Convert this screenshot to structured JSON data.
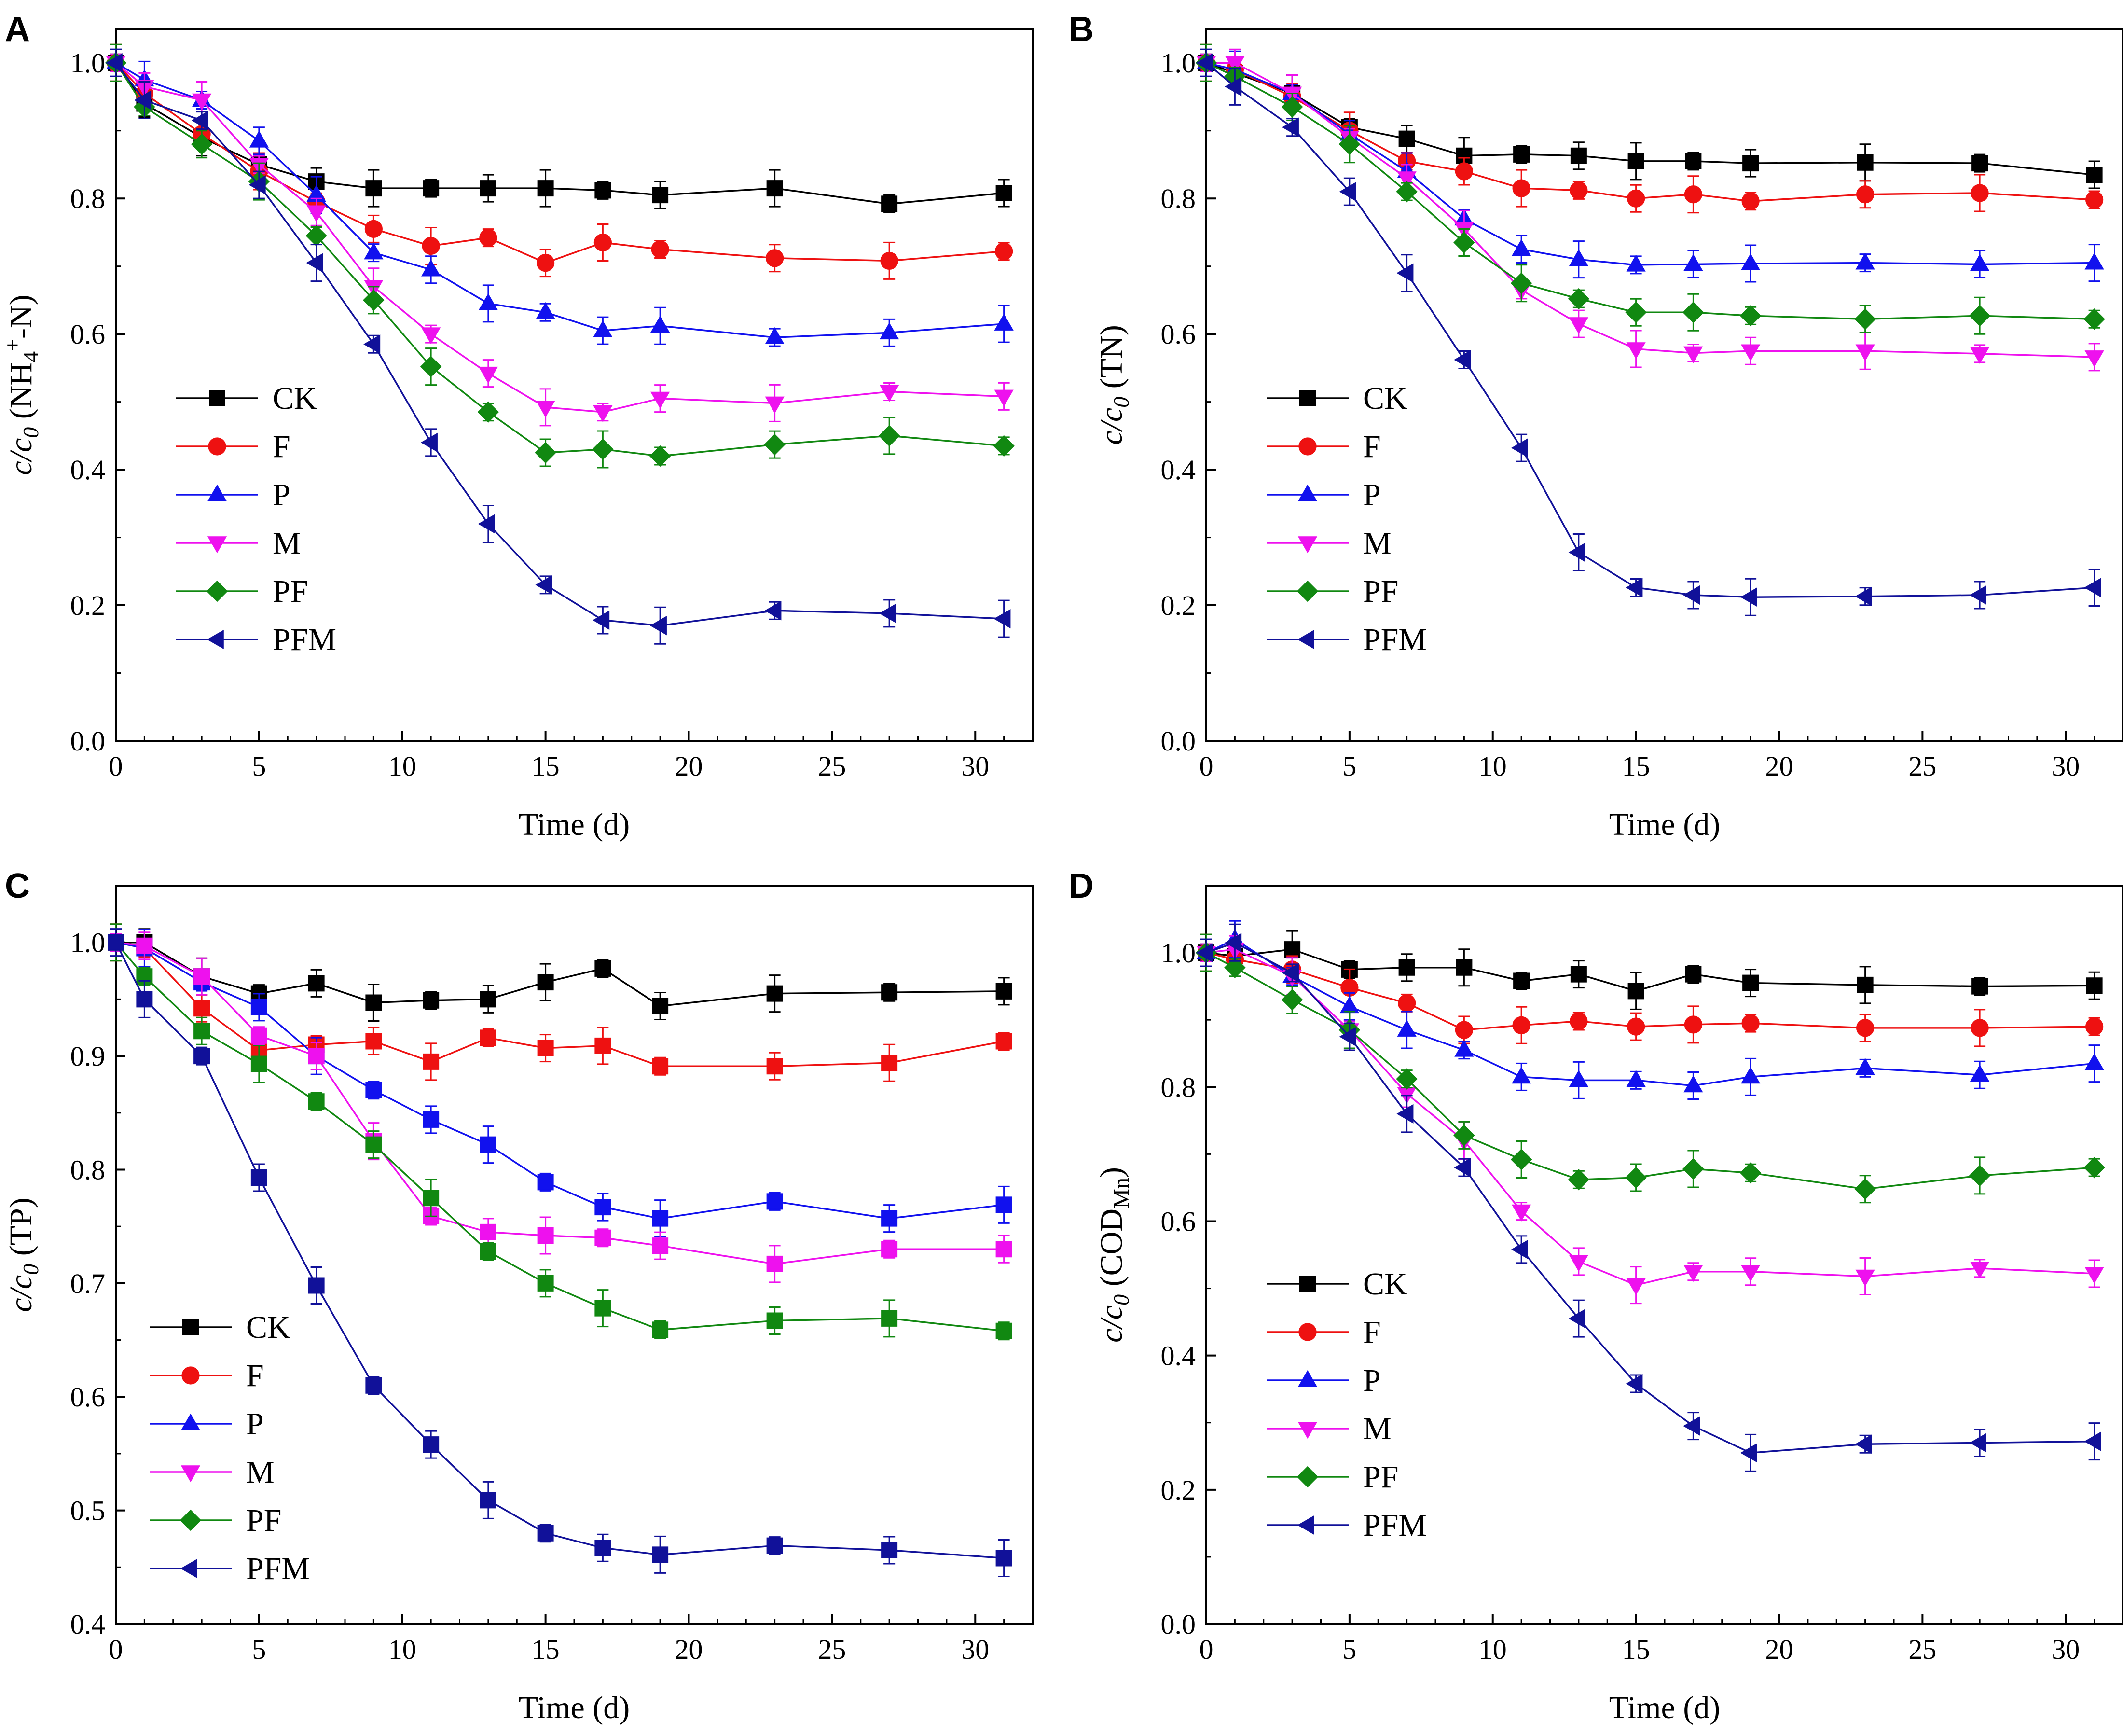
{
  "colors": {
    "CK": "#000000",
    "F": "#ee1111",
    "P": "#1111ee",
    "M": "#ee11ee",
    "PF": "#118811",
    "PFM": "#111199",
    "axis": "#000000"
  },
  "chart_data": [
    {
      "type": "line",
      "panel": "A",
      "xlabel": "Time (d)",
      "ylabel": "c/c0 (NH4+-N)",
      "ylabel_parts": {
        "italic": "c/c",
        "sub0": "0",
        "rest": " (NH",
        "sub4": "4",
        "sup": "+",
        "tail": "-N)"
      },
      "xlim": [
        0,
        32
      ],
      "ylim": [
        0.0,
        1.05
      ],
      "xticks": [
        0,
        5,
        10,
        15,
        20,
        25,
        30
      ],
      "yticks": [
        "0.0",
        "0.2",
        "0.4",
        "0.6",
        "0.8",
        "1.0"
      ],
      "legend_position": "middle-left",
      "x": [
        0,
        1,
        3,
        5,
        7,
        9,
        11,
        13,
        15,
        17,
        19,
        23,
        27,
        31
      ],
      "series": [
        {
          "name": "CK",
          "marker": "square",
          "values": [
            1.0,
            0.94,
            0.89,
            0.85,
            0.825,
            0.815,
            0.815,
            0.815,
            0.815,
            0.812,
            0.805,
            0.815,
            0.792,
            0.808
          ]
        },
        {
          "name": "F",
          "marker": "circle",
          "values": [
            1.0,
            0.955,
            0.895,
            0.84,
            0.795,
            0.755,
            0.73,
            0.742,
            0.705,
            0.735,
            0.725,
            0.712,
            0.708,
            0.722
          ]
        },
        {
          "name": "P",
          "marker": "triangle-up",
          "values": [
            1.0,
            0.975,
            0.945,
            0.885,
            0.805,
            0.72,
            0.695,
            0.645,
            0.632,
            0.605,
            0.612,
            0.595,
            0.602,
            0.615
          ]
        },
        {
          "name": "M",
          "marker": "triangle-down",
          "values": [
            1.0,
            0.965,
            0.945,
            0.85,
            0.78,
            0.67,
            0.6,
            0.542,
            0.492,
            0.485,
            0.505,
            0.498,
            0.515,
            0.508
          ]
        },
        {
          "name": "PF",
          "marker": "diamond",
          "values": [
            1.0,
            0.935,
            0.88,
            0.825,
            0.745,
            0.65,
            0.552,
            0.485,
            0.425,
            0.43,
            0.42,
            0.437,
            0.45,
            0.435
          ]
        },
        {
          "name": "PFM",
          "marker": "triangle-left",
          "values": [
            1.0,
            0.945,
            0.915,
            0.82,
            0.705,
            0.585,
            0.44,
            0.32,
            0.23,
            0.178,
            0.17,
            0.192,
            0.188,
            0.18
          ]
        }
      ]
    },
    {
      "type": "line",
      "panel": "B",
      "xlabel": "Time (d)",
      "ylabel": "c/c0 (TN)",
      "ylabel_parts": {
        "italic": "c/c",
        "sub0": "0",
        "rest": " (TN)"
      },
      "xlim": [
        0,
        32
      ],
      "ylim": [
        0.0,
        1.05
      ],
      "xticks": [
        0,
        5,
        10,
        15,
        20,
        25,
        30
      ],
      "yticks": [
        "0.0",
        "0.2",
        "0.4",
        "0.6",
        "0.8",
        "1.0"
      ],
      "legend_position": "middle-left",
      "x": [
        0,
        1,
        3,
        5,
        7,
        9,
        11,
        13,
        15,
        17,
        19,
        23,
        27,
        31
      ],
      "series": [
        {
          "name": "CK",
          "marker": "square",
          "values": [
            1.0,
            0.985,
            0.955,
            0.905,
            0.888,
            0.863,
            0.865,
            0.863,
            0.855,
            0.855,
            0.852,
            0.853,
            0.852,
            0.835
          ]
        },
        {
          "name": "F",
          "marker": "circle",
          "values": [
            1.0,
            0.99,
            0.95,
            0.9,
            0.855,
            0.84,
            0.815,
            0.812,
            0.8,
            0.806,
            0.796,
            0.806,
            0.808,
            0.798
          ]
        },
        {
          "name": "P",
          "marker": "triangle-up",
          "values": [
            1.0,
            0.99,
            0.955,
            0.895,
            0.84,
            0.77,
            0.725,
            0.71,
            0.702,
            0.703,
            0.704,
            0.705,
            0.703,
            0.705
          ]
        },
        {
          "name": "M",
          "marker": "triangle-down",
          "values": [
            1.0,
            1.0,
            0.955,
            0.89,
            0.83,
            0.755,
            0.665,
            0.615,
            0.578,
            0.572,
            0.575,
            0.575,
            0.571,
            0.566
          ]
        },
        {
          "name": "PF",
          "marker": "diamond",
          "values": [
            1.0,
            0.98,
            0.935,
            0.88,
            0.81,
            0.735,
            0.675,
            0.652,
            0.632,
            0.632,
            0.627,
            0.622,
            0.627,
            0.622
          ]
        },
        {
          "name": "PFM",
          "marker": "triangle-left",
          "values": [
            1.0,
            0.965,
            0.905,
            0.81,
            0.69,
            0.562,
            0.432,
            0.278,
            0.226,
            0.215,
            0.212,
            0.213,
            0.215,
            0.226
          ]
        }
      ]
    },
    {
      "type": "line",
      "panel": "C",
      "xlabel": "Time (d)",
      "ylabel": "c/c0 (TP)",
      "ylabel_parts": {
        "italic": "c/c",
        "sub0": "0",
        "rest": " (TP)"
      },
      "xlim": [
        0,
        32
      ],
      "ylim": [
        0.4,
        1.05
      ],
      "xticks": [
        0,
        5,
        10,
        15,
        20,
        25,
        30
      ],
      "yticks": [
        "0.4",
        "0.5",
        "0.6",
        "0.7",
        "0.8",
        "0.9",
        "1.0"
      ],
      "legend_position": "bottom-left",
      "x": [
        0,
        1,
        3,
        5,
        7,
        9,
        11,
        13,
        15,
        17,
        19,
        23,
        27,
        31
      ],
      "series": [
        {
          "name": "CK",
          "marker": "square",
          "values": [
            1.0,
            1.0,
            0.97,
            0.955,
            0.964,
            0.947,
            0.949,
            0.95,
            0.965,
            0.977,
            0.944,
            0.955,
            0.956,
            0.957
          ]
        },
        {
          "name": "F",
          "marker": "square",
          "legend_marker": "circle",
          "values": [
            1.0,
            0.995,
            0.942,
            0.905,
            0.91,
            0.913,
            0.895,
            0.916,
            0.907,
            0.909,
            0.891,
            0.891,
            0.894,
            0.913
          ]
        },
        {
          "name": "P",
          "marker": "square",
          "legend_marker": "triangle-up",
          "values": [
            1.0,
            0.995,
            0.965,
            0.943,
            0.9,
            0.87,
            0.844,
            0.822,
            0.789,
            0.767,
            0.757,
            0.772,
            0.757,
            0.769
          ]
        },
        {
          "name": "M",
          "marker": "square",
          "legend_marker": "triangle-down",
          "values": [
            1.0,
            0.997,
            0.97,
            0.918,
            0.9,
            0.825,
            0.759,
            0.745,
            0.742,
            0.74,
            0.733,
            0.717,
            0.73,
            0.73
          ]
        },
        {
          "name": "PF",
          "marker": "square",
          "legend_marker": "diamond",
          "values": [
            1.0,
            0.97,
            0.922,
            0.893,
            0.86,
            0.822,
            0.775,
            0.728,
            0.7,
            0.678,
            0.659,
            0.667,
            0.669,
            0.658
          ]
        },
        {
          "name": "PFM",
          "marker": "square",
          "legend_marker": "triangle-left",
          "values": [
            1.0,
            0.95,
            0.9,
            0.793,
            0.698,
            0.61,
            0.558,
            0.509,
            0.48,
            0.467,
            0.461,
            0.469,
            0.465,
            0.458
          ]
        }
      ]
    },
    {
      "type": "line",
      "panel": "D",
      "xlabel": "Time (d)",
      "ylabel": "c/c0 (CODMn)",
      "ylabel_parts": {
        "italic": "c/c",
        "sub0": "0",
        "rest": " (COD",
        "subMn": "Mn",
        "tail": ")"
      },
      "xlim": [
        0,
        32
      ],
      "ylim": [
        0.0,
        1.1
      ],
      "xticks": [
        0,
        5,
        10,
        15,
        20,
        25,
        30
      ],
      "yticks": [
        "0.0",
        "0.2",
        "0.4",
        "0.6",
        "0.8",
        "1.0"
      ],
      "legend_position": "bottom-left",
      "x": [
        0,
        1,
        3,
        5,
        7,
        9,
        11,
        13,
        15,
        17,
        19,
        23,
        27,
        31
      ],
      "series": [
        {
          "name": "CK",
          "marker": "square",
          "values": [
            1.0,
            0.995,
            1.005,
            0.975,
            0.978,
            0.978,
            0.958,
            0.968,
            0.943,
            0.968,
            0.955,
            0.952,
            0.95,
            0.951
          ]
        },
        {
          "name": "F",
          "marker": "circle",
          "values": [
            1.0,
            0.99,
            0.975,
            0.948,
            0.925,
            0.885,
            0.892,
            0.898,
            0.89,
            0.893,
            0.895,
            0.888,
            0.888,
            0.89
          ]
        },
        {
          "name": "P",
          "marker": "triangle-up",
          "values": [
            1.0,
            1.02,
            0.965,
            0.92,
            0.885,
            0.855,
            0.815,
            0.81,
            0.81,
            0.802,
            0.815,
            0.828,
            0.818,
            0.835
          ]
        },
        {
          "name": "M",
          "marker": "triangle-down",
          "values": [
            1.0,
            1.005,
            0.965,
            0.885,
            0.79,
            0.72,
            0.615,
            0.54,
            0.505,
            0.525,
            0.525,
            0.518,
            0.53,
            0.522
          ]
        },
        {
          "name": "PF",
          "marker": "diamond",
          "values": [
            1.0,
            0.978,
            0.93,
            0.885,
            0.812,
            0.728,
            0.692,
            0.662,
            0.665,
            0.678,
            0.672,
            0.648,
            0.668,
            0.68
          ]
        },
        {
          "name": "PFM",
          "marker": "triangle-left",
          "values": [
            1.0,
            1.015,
            0.97,
            0.875,
            0.76,
            0.68,
            0.558,
            0.455,
            0.358,
            0.295,
            0.255,
            0.268,
            0.27,
            0.272
          ]
        }
      ]
    }
  ]
}
